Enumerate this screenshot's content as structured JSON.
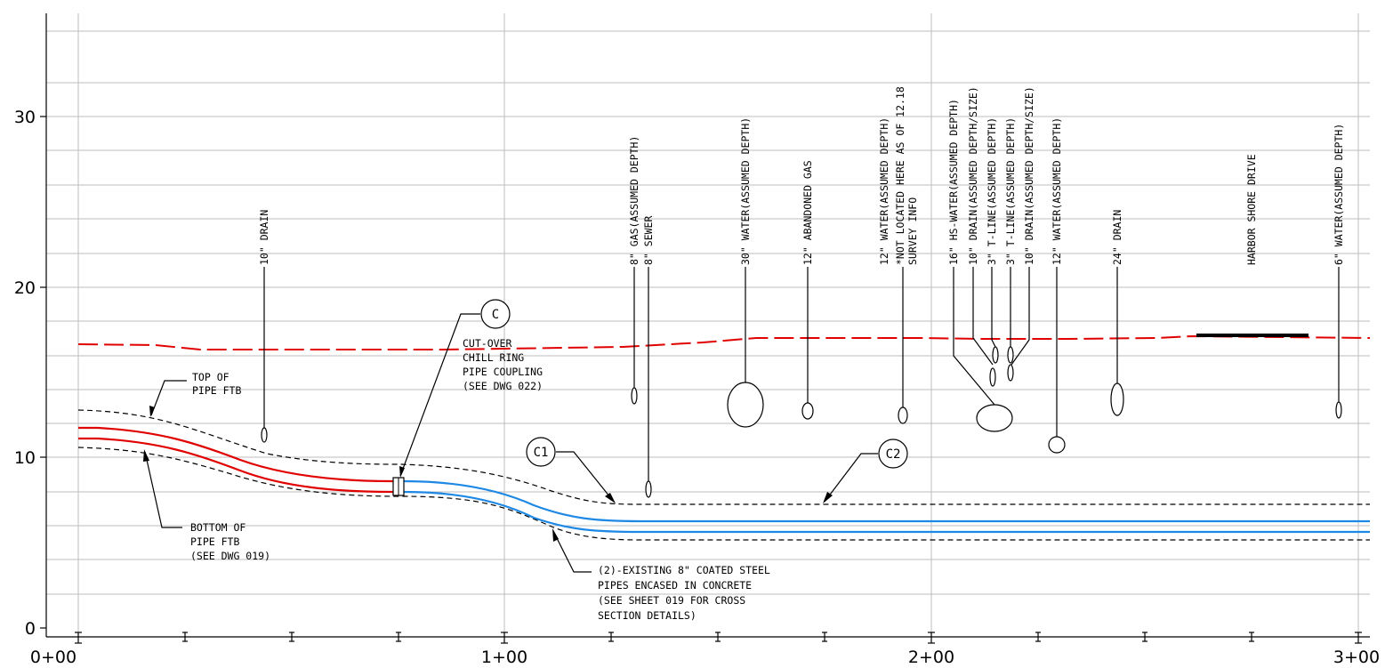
{
  "axes": {
    "y_ticks": [
      "30",
      "20",
      "10",
      "0"
    ],
    "x_ticks": [
      "0+00",
      "1+00",
      "2+00",
      "3+00"
    ]
  },
  "callouts": {
    "c": {
      "tag": "C",
      "text": [
        "CUT-OVER",
        "CHILL RING",
        "PIPE COUPLING",
        "(SEE DWG 022)"
      ]
    },
    "c1": {
      "tag": "C1"
    },
    "c2": {
      "tag": "C2"
    },
    "top_of_pipe": [
      "TOP OF",
      "PIPE FTB"
    ],
    "bottom_of_pipe": [
      "BOTTOM OF",
      "PIPE FTB",
      "(SEE DWG 019)"
    ],
    "existing_pipes": [
      "(2)-EXISTING 8\" COATED STEEL",
      "PIPES ENCASED IN CONCRETE",
      "(SEE SHEET 019 FOR CROSS",
      "SECTION DETAILS)"
    ]
  },
  "utility_labels": [
    "10\" DRAIN",
    "8\" GAS(ASSUMED DEPTH)",
    "8\" SEWER",
    "30\" WATER(ASSUMED DEPTH)",
    "12\" ABANDONED GAS",
    "12\" WATER(ASSUMED DEPTH)",
    "*NOT LOCATED HERE AS OF 12.18",
    "SURVEY INFO",
    "16\" HS-WATER(ASSUMED DEPTH)",
    "10\" DRAIN(ASSUMED DEPTH/SIZE)",
    "3\" T-LINE(ASSUMED DEPTH)",
    "3\" T-LINE(ASSUMED DEPTH)",
    "10\" DRAIN(ASSUMED DEPTH/SIZE)",
    "12\" WATER(ASSUMED DEPTH)",
    "24\" DRAIN",
    "HARBOR SHORE DRIVE",
    "6\" WATER(ASSUMED DEPTH)"
  ],
  "colors": {
    "proposed_pipe": "#e00000",
    "existing_pipe": "#1e88e5",
    "ground_line": "#e00000",
    "grid": "#bdbdbd",
    "ink": "#000000"
  }
}
